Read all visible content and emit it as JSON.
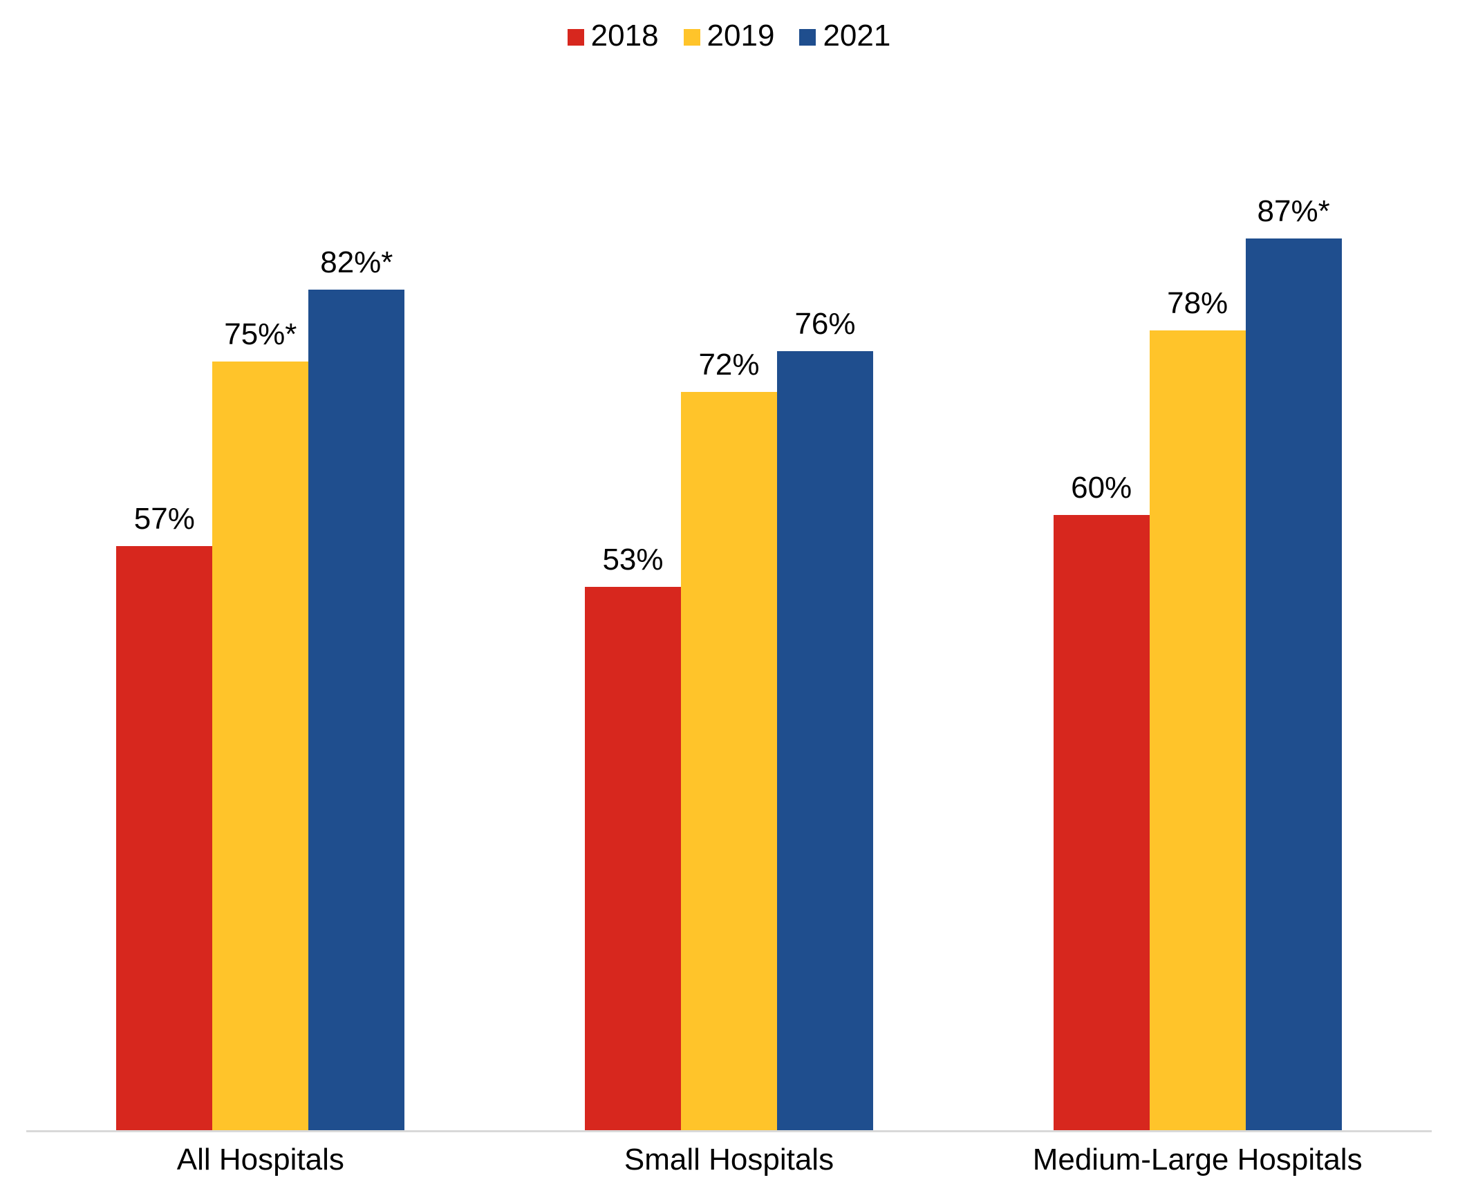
{
  "chart_data": {
    "type": "bar",
    "title": "",
    "xlabel": "",
    "ylabel": "",
    "ylim": [
      0,
      100
    ],
    "grid": false,
    "legend_position": "top",
    "axis_line_color": "#d9d9d9",
    "categories": [
      "All Hospitals",
      "Small Hospitals",
      "Medium-Large Hospitals"
    ],
    "series": [
      {
        "name": "2018",
        "color": "#d7271e",
        "values": [
          57,
          53,
          60
        ],
        "labels": [
          "57%",
          "53%",
          "60%"
        ]
      },
      {
        "name": "2019",
        "color": "#ffc42a",
        "values": [
          75,
          72,
          78
        ],
        "labels": [
          "75%*",
          "72%",
          "78%"
        ]
      },
      {
        "name": "2021",
        "color": "#1f4e8e",
        "values": [
          82,
          76,
          87
        ],
        "labels": [
          "82%*",
          "76%",
          "87%*"
        ]
      }
    ]
  }
}
